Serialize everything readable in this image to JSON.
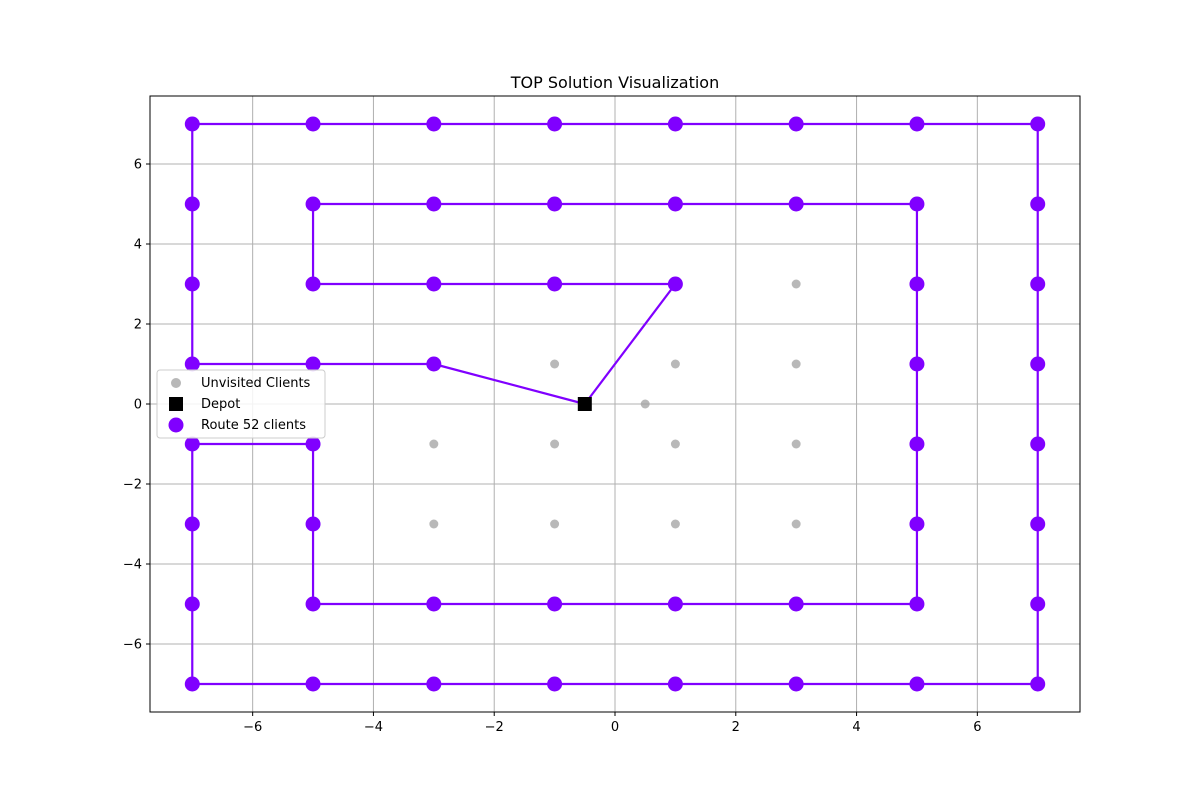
{
  "chart_data": {
    "type": "scatter",
    "title": "TOP Solution Visualization",
    "xlabel": "",
    "ylabel": "",
    "xlim": [
      -7.7,
      7.7
    ],
    "ylim": [
      -7.7,
      7.7
    ],
    "xticks": [
      -6,
      -4,
      -2,
      0,
      2,
      4,
      6
    ],
    "yticks": [
      -6,
      -4,
      -2,
      0,
      2,
      4,
      6
    ],
    "xtick_labels": [
      "−6",
      "−4",
      "−2",
      "0",
      "2",
      "4",
      "6"
    ],
    "ytick_labels": [
      "−6",
      "−4",
      "−2",
      "0",
      "2",
      "4",
      "6"
    ],
    "grid": true,
    "legend_position": "center-left",
    "colors": {
      "route": "#8000ff",
      "unvisited": "#a0a0a0",
      "depot": "#000000"
    },
    "unvisited_clients": {
      "name": "Unvisited Clients",
      "points": [
        [
          3,
          3
        ],
        [
          -1,
          1
        ],
        [
          1,
          1
        ],
        [
          3,
          1
        ],
        [
          0.5,
          0
        ],
        [
          -3,
          -1
        ],
        [
          -1,
          -1
        ],
        [
          1,
          -1
        ],
        [
          3,
          -1
        ],
        [
          -3,
          -3
        ],
        [
          -1,
          -3
        ],
        [
          1,
          -3
        ],
        [
          3,
          -3
        ]
      ]
    },
    "depot": {
      "name": "Depot",
      "point": [
        -0.5,
        0
      ]
    },
    "route": {
      "name": "Route 52 clients",
      "path": [
        [
          -0.5,
          0
        ],
        [
          1,
          3
        ],
        [
          -1,
          3
        ],
        [
          -3,
          3
        ],
        [
          -5,
          3
        ],
        [
          -5,
          5
        ],
        [
          -3,
          5
        ],
        [
          -1,
          5
        ],
        [
          1,
          5
        ],
        [
          3,
          5
        ],
        [
          5,
          5
        ],
        [
          5,
          3
        ],
        [
          5,
          1
        ],
        [
          5,
          -1
        ],
        [
          5,
          -3
        ],
        [
          5,
          -5
        ],
        [
          3,
          -5
        ],
        [
          1,
          -5
        ],
        [
          -1,
          -5
        ],
        [
          -3,
          -5
        ],
        [
          -5,
          -5
        ],
        [
          -5,
          -3
        ],
        [
          -5,
          -1
        ],
        [
          -7,
          -1
        ],
        [
          -7,
          -3
        ],
        [
          -7,
          -5
        ],
        [
          -7,
          -7
        ],
        [
          -5,
          -7
        ],
        [
          -3,
          -7
        ],
        [
          -1,
          -7
        ],
        [
          1,
          -7
        ],
        [
          3,
          -7
        ],
        [
          5,
          -7
        ],
        [
          7,
          -7
        ],
        [
          7,
          -5
        ],
        [
          7,
          -3
        ],
        [
          7,
          -1
        ],
        [
          7,
          1
        ],
        [
          7,
          3
        ],
        [
          7,
          5
        ],
        [
          7,
          7
        ],
        [
          5,
          7
        ],
        [
          3,
          7
        ],
        [
          1,
          7
        ],
        [
          -1,
          7
        ],
        [
          -3,
          7
        ],
        [
          -5,
          7
        ],
        [
          -7,
          7
        ],
        [
          -7,
          5
        ],
        [
          -7,
          3
        ],
        [
          -7,
          1
        ],
        [
          -5,
          1
        ],
        [
          -3,
          1
        ],
        [
          -0.5,
          0
        ]
      ]
    }
  }
}
